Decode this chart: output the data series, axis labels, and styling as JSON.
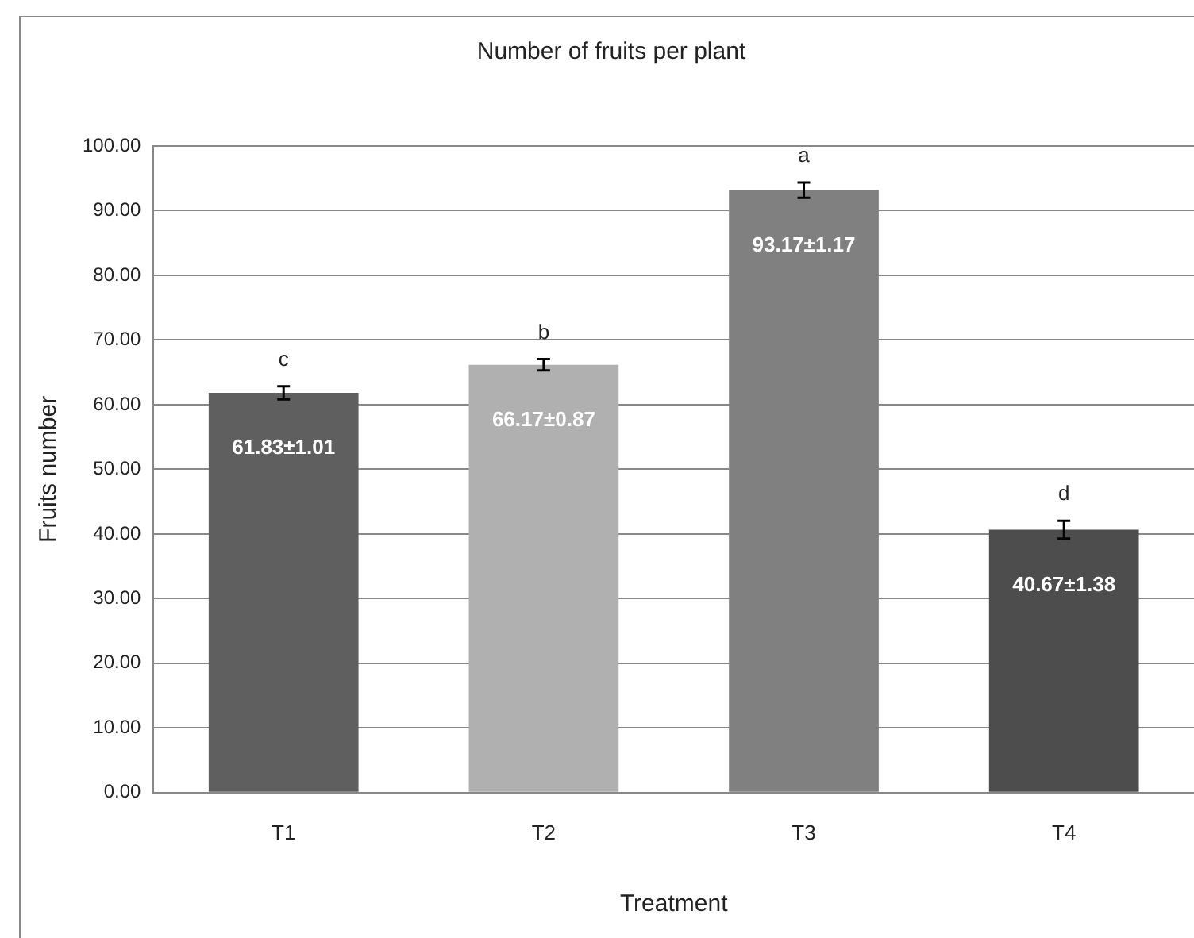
{
  "chart_data": {
    "type": "bar",
    "title": "Number of fruits per plant",
    "xlabel": "Treatment",
    "ylabel": "Fruits number",
    "categories": [
      "T1",
      "T2",
      "T3",
      "T4"
    ],
    "values": [
      61.83,
      66.17,
      93.17,
      40.67
    ],
    "colors": [
      "#5f5f5f",
      "#b0b0b0",
      "#808080",
      "#4d4d4d"
    ],
    "errors": [
      1.01,
      0.87,
      1.17,
      1.38
    ],
    "value_labels": [
      "61.83±1.01",
      "66.17±0.87",
      "93.17±1.17",
      "40.67±1.38"
    ],
    "annotations": [
      "c",
      "b",
      "a",
      "d"
    ],
    "ylim": [
      0,
      100
    ],
    "yticks": [
      {
        "value": 0,
        "label": "0.00"
      },
      {
        "value": 10,
        "label": "10.00"
      },
      {
        "value": 20,
        "label": "20.00"
      },
      {
        "value": 30,
        "label": "30.00"
      },
      {
        "value": 40,
        "label": "40.00"
      },
      {
        "value": 50,
        "label": "50.00"
      },
      {
        "value": 60,
        "label": "60.00"
      },
      {
        "value": 70,
        "label": "70.00"
      },
      {
        "value": 80,
        "label": "80.00"
      },
      {
        "value": 90,
        "label": "90.00"
      },
      {
        "value": 100,
        "label": "100.00"
      }
    ],
    "grid": "y",
    "legend": false
  }
}
